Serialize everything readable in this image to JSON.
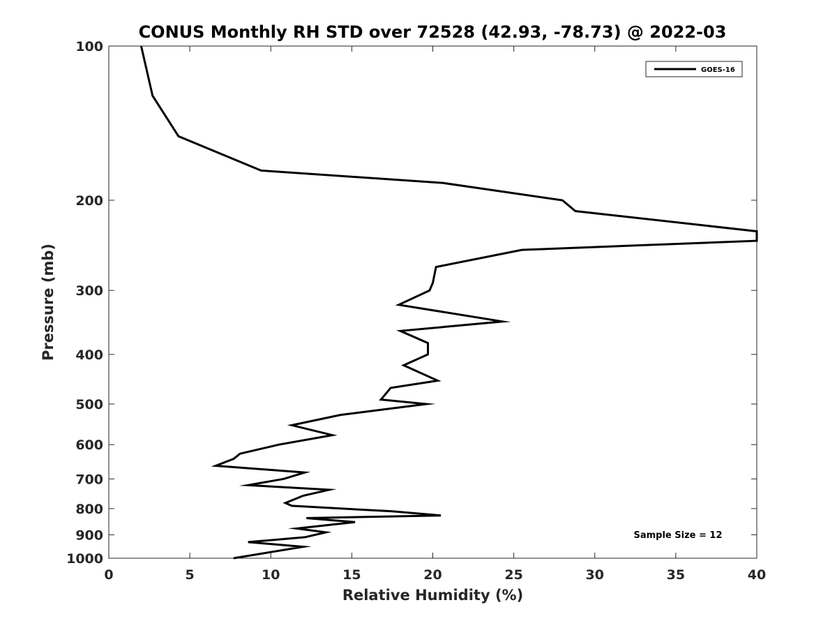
{
  "chart_data": {
    "type": "line",
    "title": "CONUS Monthly RH STD over 72528 (42.93, -78.73) @ 2022-03",
    "xlabel": "Relative Humidity (%)",
    "ylabel": "Pressure (mb)",
    "xlim": [
      0,
      40
    ],
    "ylim": [
      100,
      1000
    ],
    "yscale": "log",
    "yaxis_reversed": true,
    "grid": false,
    "legend_position": "top-right",
    "x_ticks": [
      0,
      5,
      10,
      15,
      20,
      25,
      30,
      35,
      40
    ],
    "y_ticks": [
      100,
      200,
      300,
      400,
      500,
      600,
      700,
      800,
      900,
      1000
    ],
    "annotation": "Sample Size = 12",
    "line_color": "#000000",
    "series": [
      {
        "name": "GOES-16",
        "x": [
          2.0,
          2.7,
          4.3,
          9.4,
          20.6,
          28.0,
          28.8,
          40.0,
          40.0,
          25.5,
          20.2,
          20.0,
          19.8,
          17.9,
          24.3,
          18.0,
          19.7,
          19.7,
          18.2,
          20.3,
          17.4,
          16.8,
          19.6,
          14.3,
          11.3,
          13.8,
          10.5,
          8.1,
          7.7,
          6.6,
          12.1,
          10.8,
          8.6,
          13.6,
          12.0,
          10.9,
          11.3,
          17.5,
          20.5,
          12.2,
          15.2,
          11.6,
          13.4,
          12.1,
          8.6,
          12.0,
          7.7
        ],
        "y": [
          100,
          125,
          150,
          175,
          185,
          200,
          210,
          230,
          240,
          250,
          270,
          290,
          300,
          320,
          345,
          360,
          380,
          400,
          420,
          450,
          465,
          490,
          500,
          525,
          550,
          575,
          600,
          625,
          640,
          660,
          680,
          700,
          720,
          735,
          755,
          780,
          790,
          810,
          825,
          835,
          850,
          875,
          890,
          910,
          930,
          950,
          1000
        ]
      }
    ]
  }
}
